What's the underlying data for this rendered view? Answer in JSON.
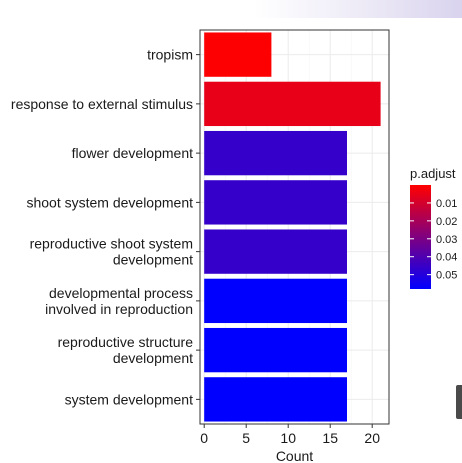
{
  "chart_data": {
    "type": "bar",
    "orientation": "horizontal",
    "categories": [
      [
        "tropism"
      ],
      [
        "response to external stimulus"
      ],
      [
        "flower development"
      ],
      [
        "shoot system development"
      ],
      [
        "reproductive shoot system",
        "development"
      ],
      [
        "developmental process",
        "involved in reproduction"
      ],
      [
        "reproductive structure",
        "development"
      ],
      [
        "system development"
      ]
    ],
    "values": [
      8,
      21,
      17,
      17,
      17,
      17,
      17,
      17
    ],
    "p_adjust": [
      0.0005,
      0.0055,
      0.046,
      0.046,
      0.046,
      0.058,
      0.058,
      0.058
    ],
    "xlabel": "Count",
    "ylabel": "",
    "xlim": [
      -0.5,
      22
    ],
    "xticks": [
      "0",
      "5",
      "10",
      "15",
      "20"
    ],
    "xtick_values": [
      0,
      5,
      10,
      15,
      20
    ],
    "grid": true,
    "legend": {
      "title": "p.adjust",
      "placement": "right",
      "ticks": [
        "0.01",
        "0.02",
        "0.03",
        "0.04",
        "0.05"
      ],
      "tick_values": [
        0.01,
        0.02,
        0.03,
        0.04,
        0.05
      ],
      "range": [
        0,
        0.058
      ]
    },
    "colors": {
      "low": "#ff0000",
      "high": "#0000ff"
    }
  }
}
